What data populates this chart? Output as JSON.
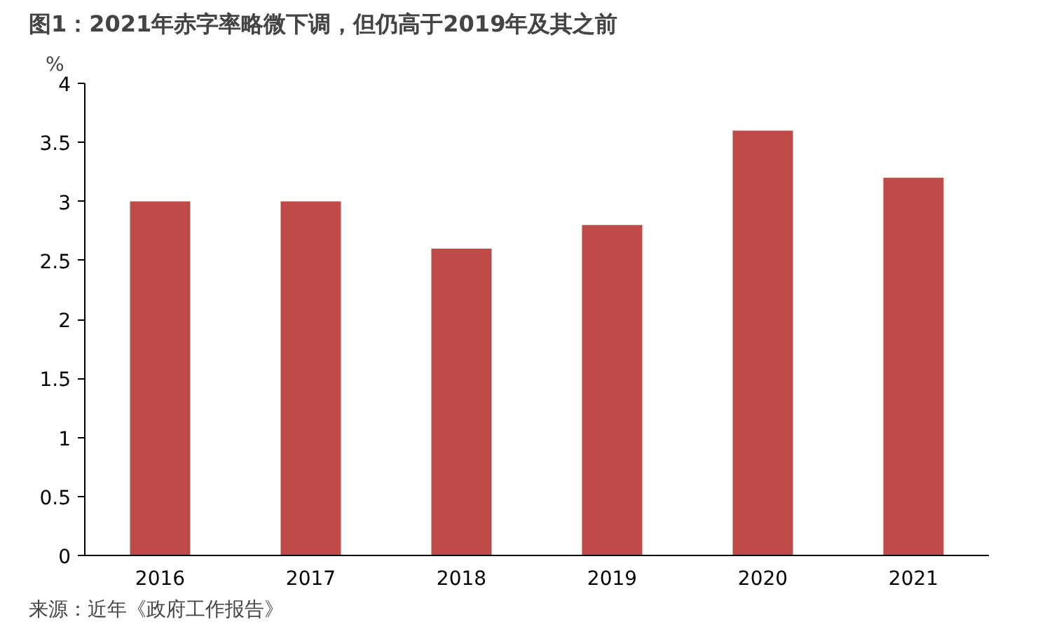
{
  "chart_data": {
    "type": "bar",
    "title": "图1：2021年赤字率略微下调，但仍高于2019年及其之前",
    "ylabel": "%",
    "categories": [
      "2016",
      "2017",
      "2018",
      "2019",
      "2020",
      "2021"
    ],
    "values": [
      3.0,
      3.0,
      2.6,
      2.8,
      3.6,
      3.2
    ],
    "color": "#be4b48",
    "ylim": [
      0,
      4
    ],
    "yticks": [
      0,
      0.5,
      1,
      1.5,
      2,
      2.5,
      3,
      3.5,
      4
    ],
    "grid": false,
    "annotations": [
      "来源：近年《政府工作报告》"
    ]
  }
}
